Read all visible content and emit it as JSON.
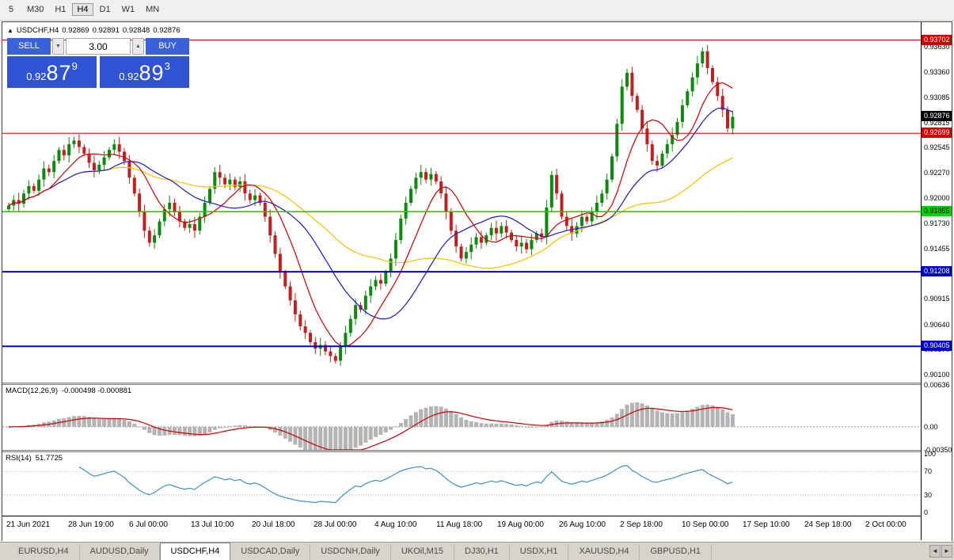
{
  "toolbar": {
    "timeframes": [
      {
        "label": "5",
        "active": false
      },
      {
        "label": "M30",
        "active": false
      },
      {
        "label": "H1",
        "active": false
      },
      {
        "label": "H4",
        "active": true
      },
      {
        "label": "D1",
        "active": false
      },
      {
        "label": "W1",
        "active": false
      },
      {
        "label": "MN",
        "active": false
      }
    ]
  },
  "chart": {
    "quote": {
      "symbol": "USDCHF,H4",
      "open": "0.92869",
      "high": "0.92891",
      "low": "0.92848",
      "close": "0.92876"
    },
    "collapse_icon": "▲",
    "trade_panel": {
      "sell_label": "SELL",
      "buy_label": "BUY",
      "volume": "3.00",
      "spinner_up_icon": "▲",
      "spinner_down_icon": "▼",
      "sell_price": {
        "small": "0.92",
        "huge": "87",
        "sup": "9"
      },
      "buy_price": {
        "small": "0.92",
        "huge": "89",
        "sup": "3"
      },
      "panel_color": "#3a60da"
    },
    "scale": {
      "vmax": 0.93894,
      "vmin": 0.90015
    },
    "price_axis": {
      "labels": [
        "0.93630",
        "0.93360",
        "0.93085",
        "0.92815",
        "0.92545",
        "0.92270",
        "0.92000",
        "0.91730",
        "0.91455",
        "0.91185",
        "0.90915",
        "0.90640",
        "0.90370",
        "0.90100"
      ]
    },
    "current_price": {
      "value": 0.92876,
      "badge": "0.92876",
      "badge_color": "#000000",
      "text_color": "#ffffff"
    },
    "levels": [
      {
        "value": 0.93702,
        "badge": "0.93702",
        "color": "#cc0000",
        "text_color": "#ffffff",
        "width": 1
      },
      {
        "value": 0.92699,
        "badge": "0.92699",
        "color": "#cc0000",
        "text_color": "#ffffff",
        "width": 1
      },
      {
        "value": 0.91855,
        "badge": "0.91855",
        "color": "#00d200",
        "text_color": "#000000",
        "width": 1.5
      },
      {
        "value": 0.91208,
        "badge": "0.91208",
        "color": "#0000d0",
        "text_color": "#ffffff",
        "width": 2
      },
      {
        "value": 0.90405,
        "badge": "0.90405",
        "color": "#0000d0",
        "text_color": "#ffffff",
        "width": 2
      }
    ],
    "candle_colors": {
      "up": "#0c8a0c",
      "down": "#c22020"
    },
    "moving_averages": [
      {
        "name": "ma-slow",
        "period": 44,
        "color": "#f2c200"
      },
      {
        "name": "ma-mid",
        "period": 21,
        "color": "#1a1acc"
      },
      {
        "name": "ma-fast",
        "period": 9,
        "color": "#cc0000"
      }
    ],
    "candles": {
      "closes": [
        0.9192,
        0.9198,
        0.9194,
        0.9205,
        0.9213,
        0.9208,
        0.922,
        0.9232,
        0.9228,
        0.924,
        0.9252,
        0.9246,
        0.9258,
        0.9262,
        0.9255,
        0.9248,
        0.9238,
        0.923,
        0.9236,
        0.9244,
        0.9252,
        0.9258,
        0.925,
        0.924,
        0.9222,
        0.9205,
        0.9185,
        0.9165,
        0.9152,
        0.916,
        0.9175,
        0.9188,
        0.9195,
        0.9185,
        0.9175,
        0.9168,
        0.9172,
        0.9165,
        0.918,
        0.9195,
        0.921,
        0.9228,
        0.9222,
        0.9215,
        0.922,
        0.9212,
        0.9218,
        0.9205,
        0.9198,
        0.9203,
        0.9195,
        0.918,
        0.916,
        0.914,
        0.912,
        0.9105,
        0.909,
        0.9075,
        0.9062,
        0.9055,
        0.9045,
        0.9038,
        0.9042,
        0.9035,
        0.903,
        0.9025,
        0.904,
        0.9055,
        0.907,
        0.9085,
        0.908,
        0.9095,
        0.9105,
        0.9112,
        0.9108,
        0.912,
        0.9135,
        0.9155,
        0.9178,
        0.9195,
        0.921,
        0.9222,
        0.9228,
        0.922,
        0.9226,
        0.9218,
        0.9205,
        0.9185,
        0.9165,
        0.9148,
        0.9135,
        0.9142,
        0.915,
        0.9158,
        0.9152,
        0.916,
        0.9168,
        0.9162,
        0.917,
        0.9163,
        0.9155,
        0.9148,
        0.9152,
        0.9145,
        0.9155,
        0.9162,
        0.9158,
        0.919,
        0.9225,
        0.9205,
        0.918,
        0.917,
        0.9162,
        0.917,
        0.918,
        0.9175,
        0.9185,
        0.9195,
        0.9205,
        0.922,
        0.9245,
        0.928,
        0.932,
        0.9335,
        0.931,
        0.9295,
        0.9275,
        0.9258,
        0.924,
        0.9235,
        0.9248,
        0.9258,
        0.9268,
        0.9282,
        0.93,
        0.9315,
        0.933,
        0.9345,
        0.9358,
        0.934,
        0.9325,
        0.931,
        0.9295,
        0.9275,
        0.92876
      ]
    },
    "time_axis": {
      "labels": [
        "21 Jun 2021",
        "28 Jun 19:00",
        "6 Jul 00:00",
        "13 Jul 10:00",
        "20 Jul 18:00",
        "28 Jul 00:00",
        "4 Aug 10:00",
        "11 Aug 18:00",
        "19 Aug 00:00",
        "26 Aug 10:00",
        "2 Sep 18:00",
        "10 Sep 00:00",
        "17 Sep 10:00",
        "24 Sep 18:00",
        "2 Oct 00:00"
      ]
    }
  },
  "macd": {
    "label": "MACD(12,26,9)",
    "values": "-0.000498 -0.000881",
    "scale": {
      "vmax": 0.00636,
      "vmin": -0.0035
    },
    "axis": [
      {
        "label": "0.00636",
        "value": 0.00636
      },
      {
        "label": "0.00",
        "value": 0
      },
      {
        "label": "-0.00350",
        "value": -0.0035
      }
    ],
    "histogram_color": "#b4b4b4",
    "signal_color": "#cc0000"
  },
  "rsi": {
    "label": "RSI(14)",
    "value": "51.7725",
    "levels": [
      70,
      30
    ],
    "axis": [
      {
        "label": "100",
        "value": 100
      },
      {
        "label": "70",
        "value": 70
      },
      {
        "label": "30",
        "value": 30
      },
      {
        "label": "0",
        "value": 0
      }
    ],
    "line_color": "#3f8fc4"
  },
  "tabbar": {
    "tabs": [
      {
        "label": "EURUSD,H4",
        "active": false
      },
      {
        "label": "AUDUSD,Daily",
        "active": false
      },
      {
        "label": "USDCHF,H4",
        "active": true
      },
      {
        "label": "USDCAD,Daily",
        "active": false
      },
      {
        "label": "USDCNH,Daily",
        "active": false
      },
      {
        "label": "UKOil,M15",
        "active": false
      },
      {
        "label": "DJ30,H1",
        "active": false
      },
      {
        "label": "USDX,H1",
        "active": false
      },
      {
        "label": "XAUUSD,H4",
        "active": false
      },
      {
        "label": "GBPUSD,H1",
        "active": false
      }
    ],
    "scroll_left_icon": "◄",
    "scroll_right_icon": "►"
  }
}
